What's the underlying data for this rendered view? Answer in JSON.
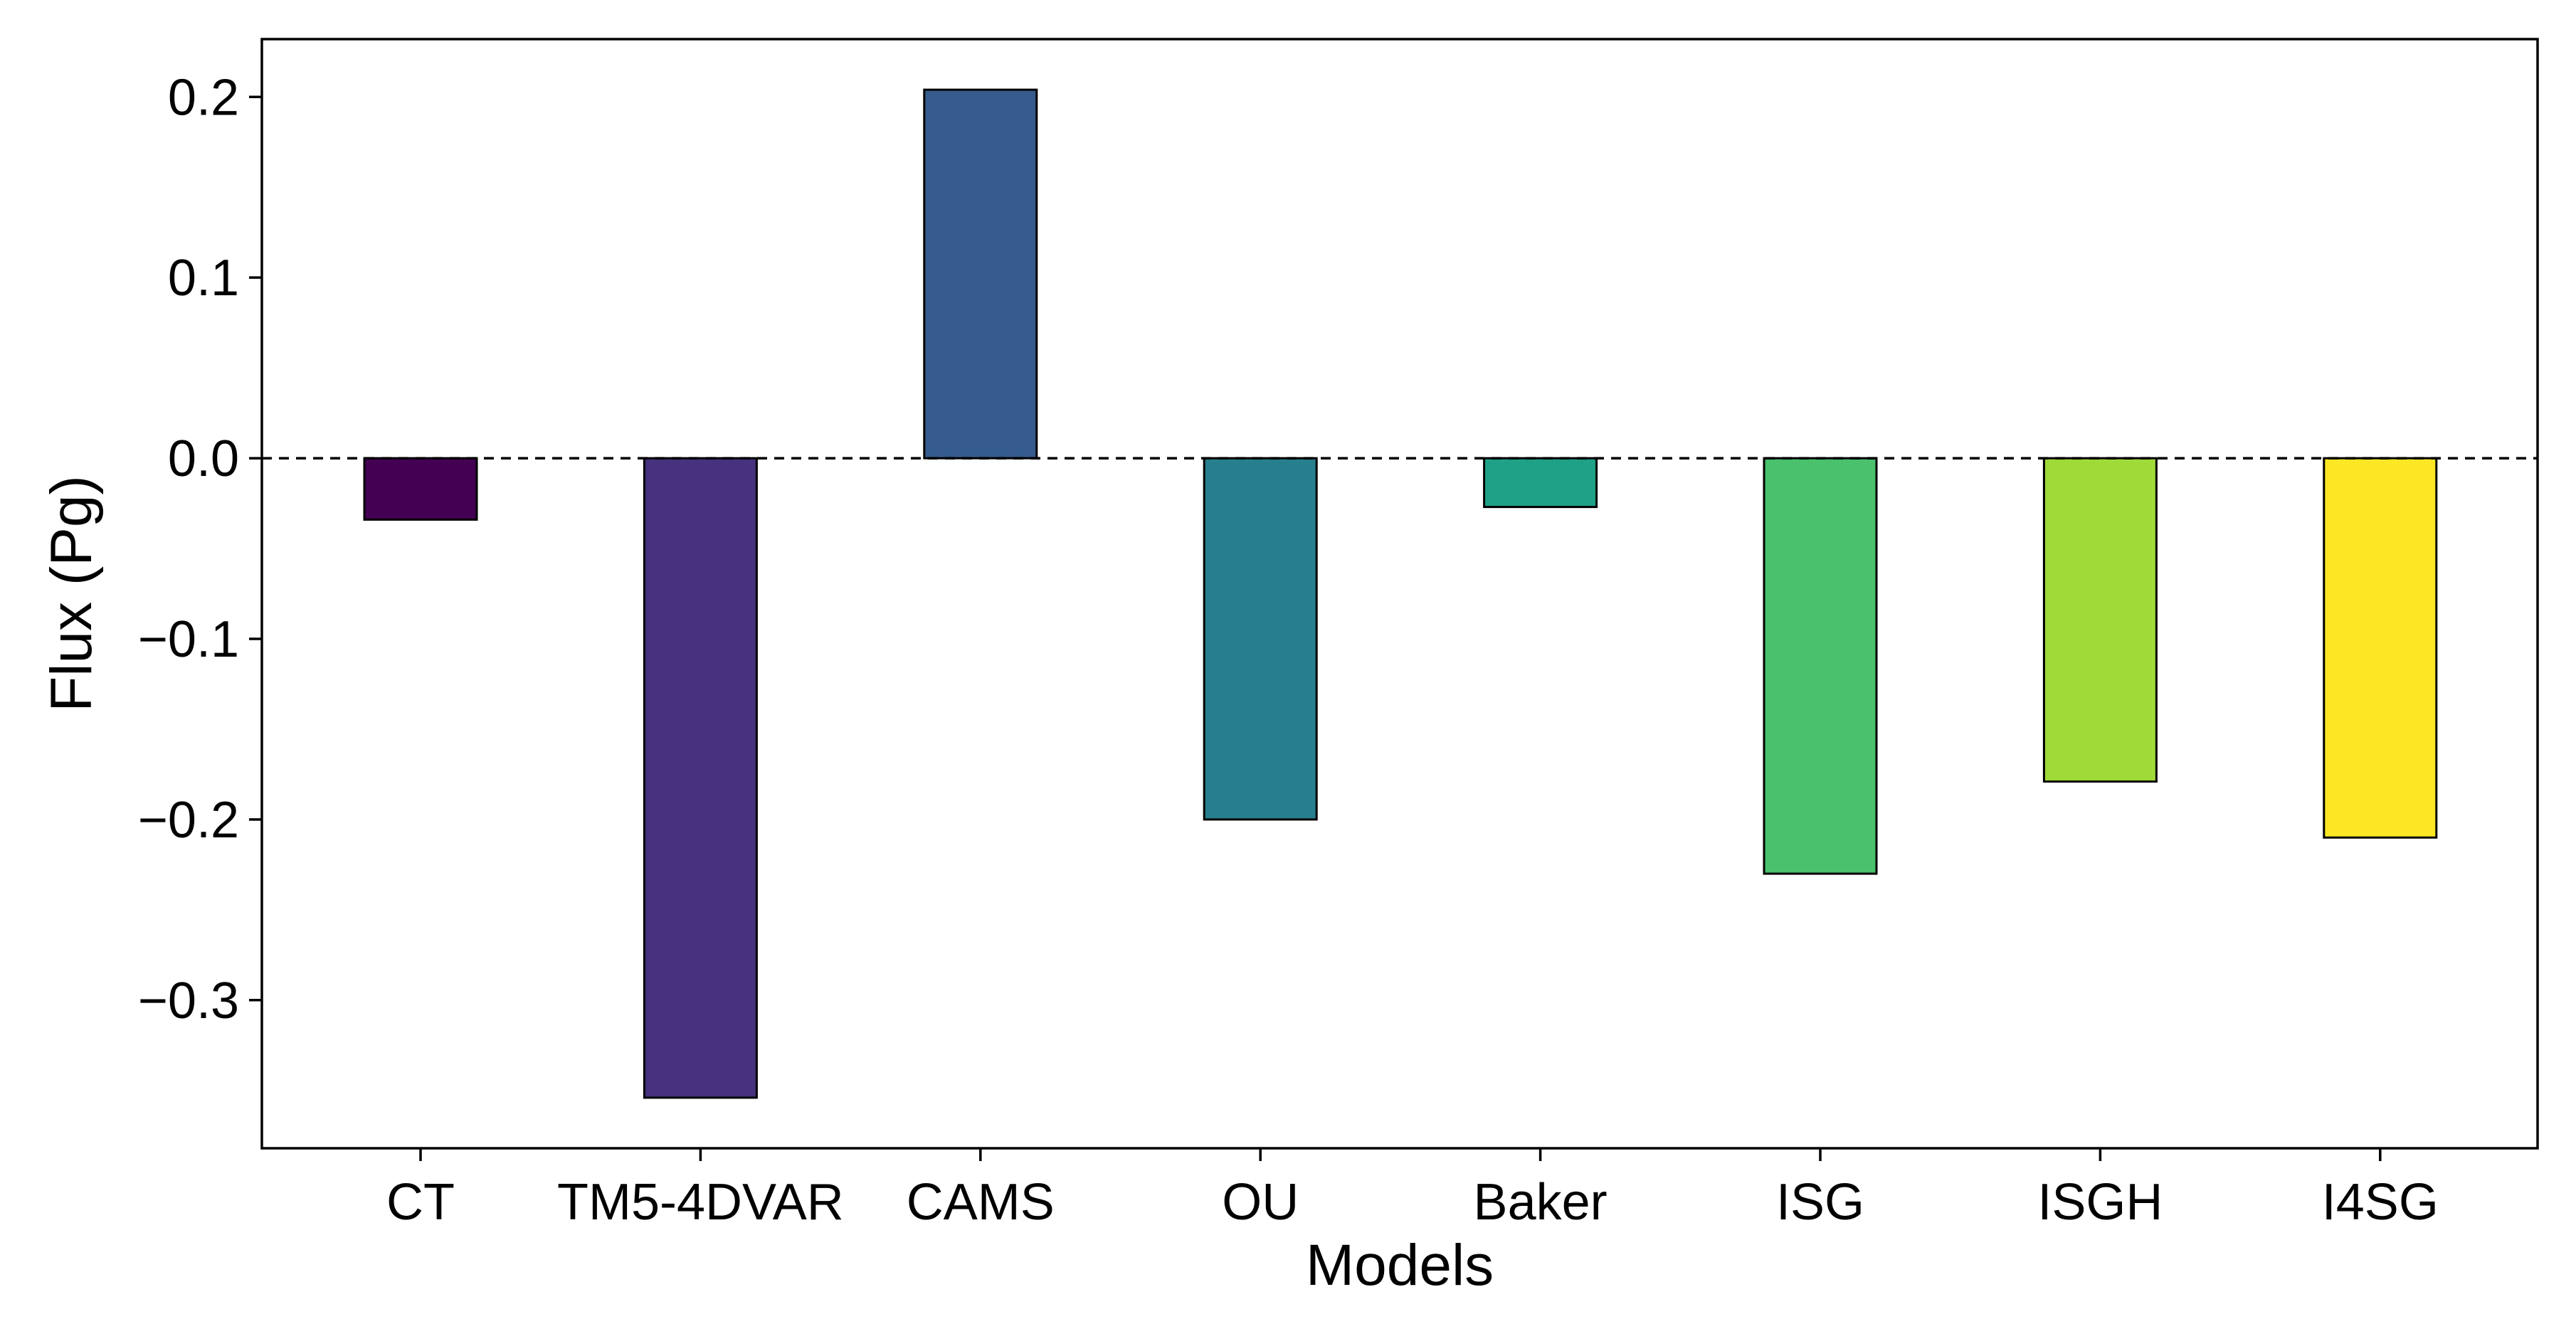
{
  "chart_data": {
    "type": "bar",
    "title": "",
    "xlabel": "Models",
    "ylabel": "Flux (Pg)",
    "categories": [
      "CT",
      "TM5-4DVAR",
      "CAMS",
      "OU",
      "Baker",
      "ISG",
      "ISGH",
      "I4SG"
    ],
    "values": [
      -0.034,
      -0.354,
      0.204,
      -0.2,
      -0.027,
      -0.23,
      -0.179,
      -0.21
    ],
    "bar_colors": [
      "#440154",
      "#46327e",
      "#365c8d",
      "#277f8e",
      "#1fa187",
      "#4ac16d",
      "#a0da39",
      "#fde725"
    ],
    "ylim": [
      -0.382,
      0.232
    ],
    "yticks": [
      0.2,
      0.1,
      0.0,
      -0.1,
      -0.2,
      -0.3
    ],
    "ytick_labels": [
      "0.2",
      "0.1",
      "0.0",
      "−0.1",
      "−0.2",
      "−0.3"
    ],
    "reference_line": {
      "value": 0.0,
      "style": "dashed"
    },
    "grid": false,
    "legend": null
  }
}
